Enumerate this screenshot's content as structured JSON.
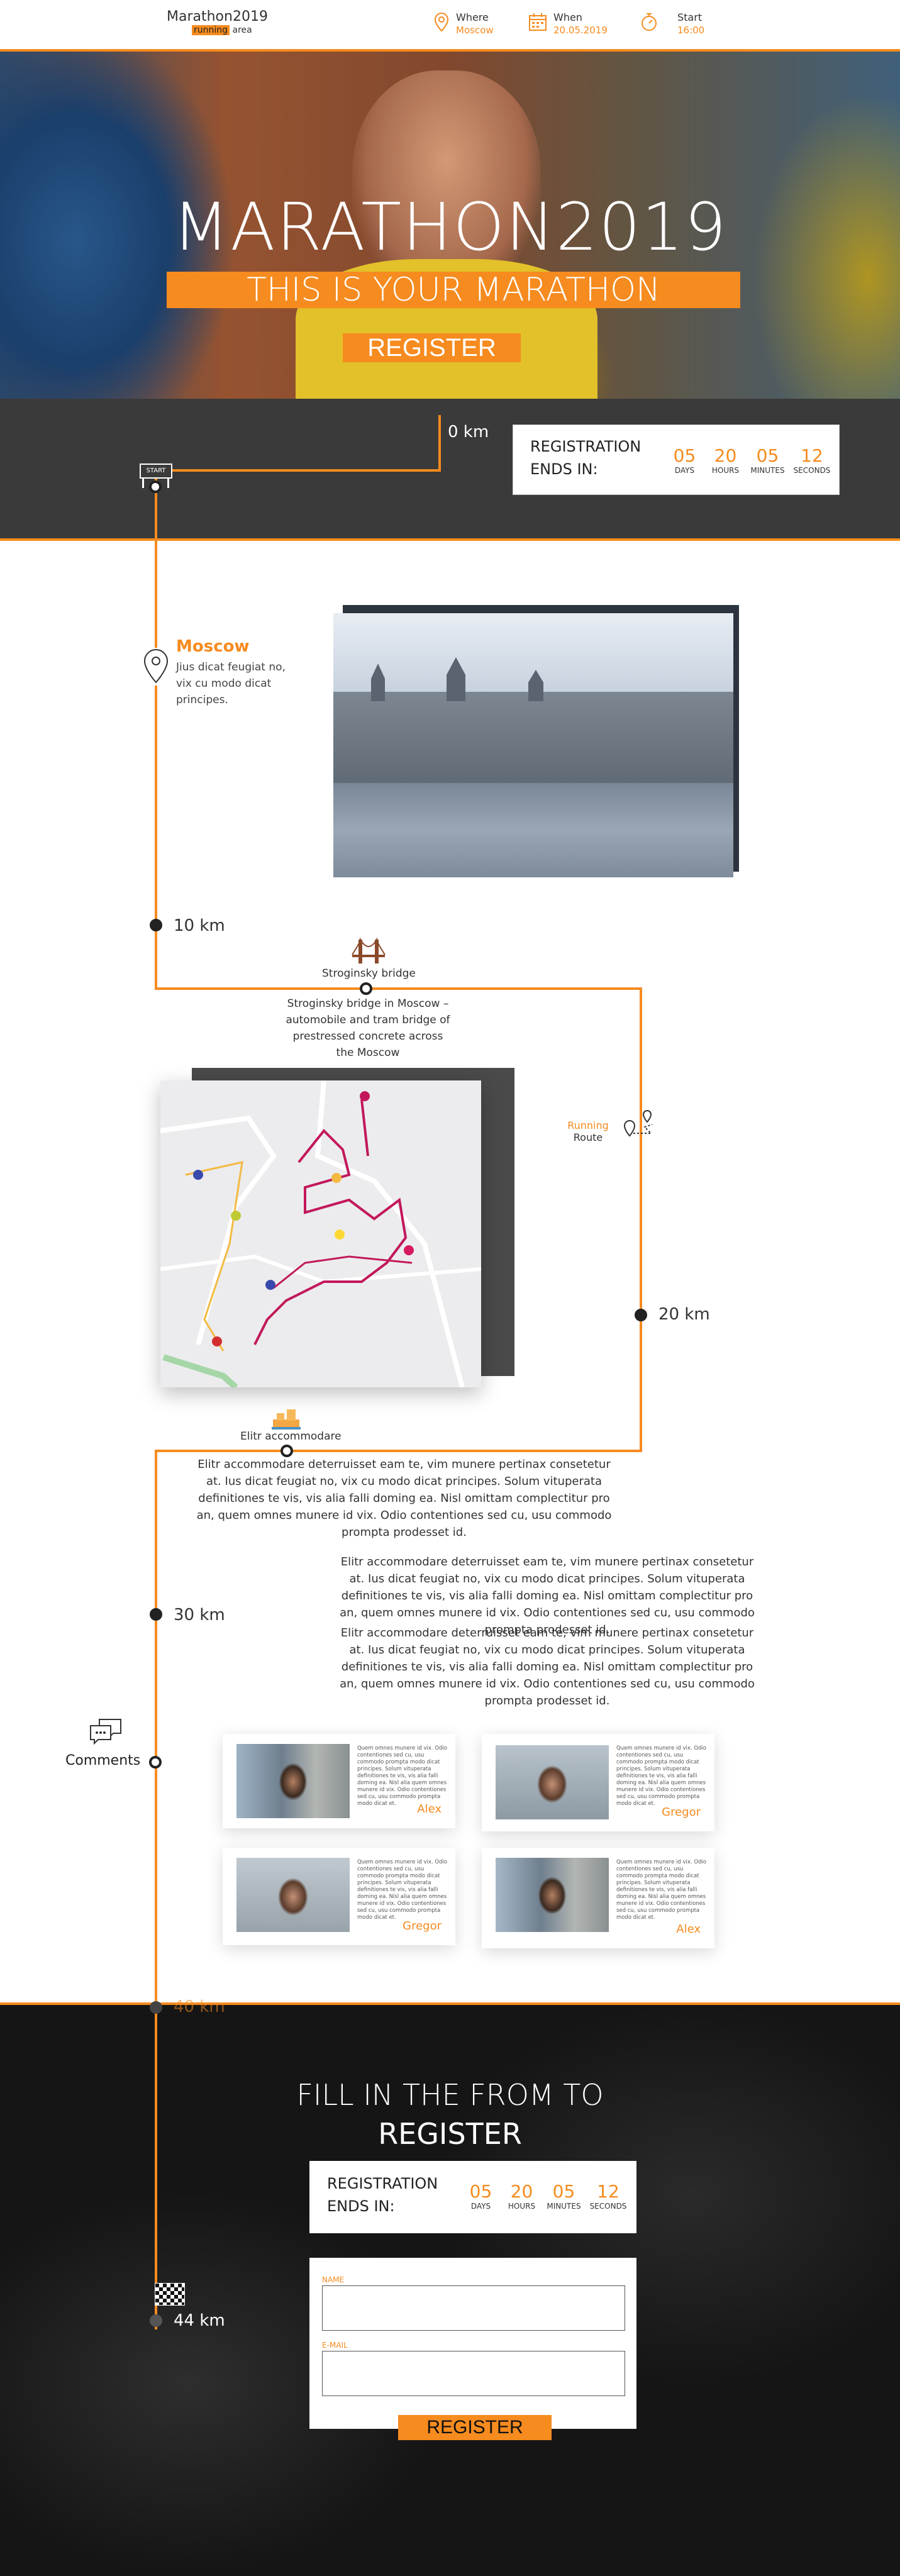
{
  "header": {
    "logo_title": "Marathon2019",
    "logo_hl": "running",
    "logo_rest": "area",
    "where_label": "Where",
    "where_value": "Moscow",
    "when_label": "When",
    "when_value": "20.05.2019",
    "start_label": "Start",
    "start_value": "16:00"
  },
  "hero": {
    "title": "MARATHON2019",
    "subtitle": "THIS IS YOUR MARATHON",
    "button": "REGISTER"
  },
  "countdown": {
    "label_line1": "REGISTRATION",
    "label_line2": "ENDS IN:",
    "days": "05",
    "hours": "20",
    "minutes": "05",
    "seconds": "12",
    "days_label": "DAYS",
    "hours_label": "HOURS",
    "minutes_label": "MINUTES",
    "seconds_label": "SECONDS"
  },
  "route": {
    "start_sign": "START",
    "km0": "0 km",
    "km10": "10 km",
    "km20": "20 km",
    "km30": "30 km",
    "km40": "40 km",
    "km44": "44 km"
  },
  "moscow": {
    "title": "Moscow",
    "text": "Jius dicat feugiat no, vix cu modo dicat principes."
  },
  "bridge": {
    "label": "Stroginsky bridge",
    "desc": "Stroginsky bridge in Moscow – automobile and tram bridge of prestressed concrete across the Moscow"
  },
  "running_route": {
    "line1": "Running",
    "line2": "Route"
  },
  "accommodation": {
    "label": "Elitr accommodare",
    "p1": "Elitr accommodare deterruisset eam te, vim munere pertinax consetetur at. Ius dicat feugiat no, vix cu modo dicat principes. Solum vituperata definitiones te vis, vis alia falli doming ea. Nisl omittam complectitur pro an, quem omnes munere id vix. Odio contentiones sed cu, usu commodo prompta prodesset id.",
    "p2": "Elitr accommodare deterruisset eam te, vim munere pertinax consetetur at. Ius dicat feugiat no, vix cu modo dicat principes. Solum vituperata definitiones te vis, vis alia falli doming ea. Nisl omittam complectitur pro an, quem omnes munere id vix. Odio contentiones sed cu, usu commodo prompta prodesset id.",
    "p3": "Elitr accommodare deterruisset eam te, vim munere pertinax consetetur at. Ius dicat feugiat no, vix cu modo dicat principes. Solum vituperata definitiones te vis, vis alia falli doming ea. Nisl omittam complectitur pro an, quem omnes munere id vix. Odio contentiones sed cu, usu commodo prompta prodesset id."
  },
  "comments": {
    "label": "Comments",
    "items": [
      {
        "name": "Alex",
        "text": "Quem omnes munere id vix. Odio contentiones sed cu, usu commodo prompta modo dicat principes. Solum vituperata definitiones te vis, vis alia falli doming ea. Nisl alia quem omnes munere id vix. Odio contentiones sed cu, usu commodo prompta modo dicat et."
      },
      {
        "name": "Gregor",
        "text": "Quem omnes munere id vix. Odio contentiones sed cu, usu commodo prompta modo dicat principes. Solum vituperata definitiones te vis, vis alia falli doming ea. Nisl alia quem omnes munere id vix. Odio contentiones sed cu, usu commodo prompta modo dicat et."
      },
      {
        "name": "Gregor",
        "text": "Quem omnes munere id vix. Odio contentiones sed cu, usu commodo prompta modo dicat principes. Solum vituperata definitiones te vis, vis alia falli doming ea. Nisl alia quem omnes munere id vix. Odio contentiones sed cu, usu commodo prompta modo dicat et."
      },
      {
        "name": "Alex",
        "text": "Quem omnes munere id vix. Odio contentiones sed cu, usu commodo prompta modo dicat principes. Solum vituperata definitiones te vis, vis alia falli doming ea. Nisl alia quem omnes munere id vix. Odio contentiones sed cu, usu commodo prompta modo dicat et."
      }
    ]
  },
  "register": {
    "title_line1": "FILL IN THE FROM TO",
    "title_line2": "REGISTER",
    "name_label": "NAME",
    "email_label": "E-MAIL",
    "button": "REGISTER"
  },
  "colors": {
    "accent": "#f68b1f",
    "dark": "#3a3a3a"
  }
}
